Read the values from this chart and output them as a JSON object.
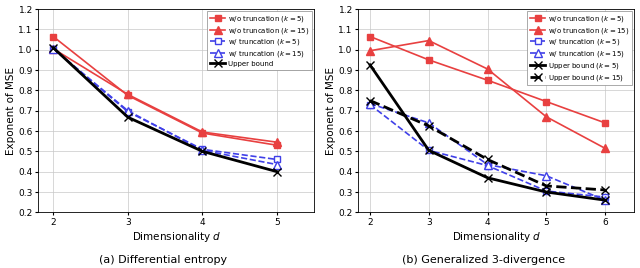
{
  "subplot_a": {
    "title": "(a) Differential entropy",
    "xlabel": "Dimensionality $d$",
    "ylabel": "Exponent of MSE",
    "xlim": [
      1.8,
      5.5
    ],
    "ylim": [
      0.2,
      1.2
    ],
    "xticks": [
      2,
      3,
      4,
      5
    ],
    "yticks": [
      0.2,
      0.3,
      0.4,
      0.5,
      0.6,
      0.7,
      0.8,
      0.9,
      1.0,
      1.1,
      1.2
    ],
    "series": [
      {
        "label": "w/o truncation ($k = 5$)",
        "x": [
          2,
          3,
          4,
          5
        ],
        "y": [
          1.065,
          0.775,
          0.59,
          0.53
        ],
        "color": "#e84040",
        "linestyle": "-",
        "marker": "s",
        "markerfacecolor": "#e84040",
        "markersize": 5,
        "linewidth": 1.2
      },
      {
        "label": "w/o truncation ($k = 15$)",
        "x": [
          2,
          3,
          4,
          5
        ],
        "y": [
          1.005,
          0.78,
          0.595,
          0.545
        ],
        "color": "#e84040",
        "linestyle": "-",
        "marker": "^",
        "markerfacecolor": "#e84040",
        "markersize": 6,
        "linewidth": 1.2
      },
      {
        "label": "w/ truncation ($k = 5$)",
        "x": [
          2,
          3,
          4,
          5
        ],
        "y": [
          1.005,
          0.695,
          0.51,
          0.46
        ],
        "color": "#4040e8",
        "linestyle": "--",
        "marker": "s",
        "markerfacecolor": "white",
        "markersize": 5,
        "linewidth": 1.2
      },
      {
        "label": "w/ truncation ($k = 15$)",
        "x": [
          2,
          3,
          4,
          5
        ],
        "y": [
          1.005,
          0.7,
          0.505,
          0.435
        ],
        "color": "#4040e8",
        "linestyle": "--",
        "marker": "^",
        "markerfacecolor": "white",
        "markersize": 6,
        "linewidth": 1.2
      },
      {
        "label": "Upper bound",
        "x": [
          2,
          3,
          4,
          5
        ],
        "y": [
          1.01,
          0.668,
          0.5,
          0.4
        ],
        "color": "#000000",
        "linestyle": "-",
        "marker": "x",
        "markerfacecolor": "#000000",
        "markersize": 6,
        "linewidth": 2.0
      }
    ]
  },
  "subplot_b": {
    "title": "(b) Generalized 3-divergence",
    "xlabel": "Dimensionality $d$",
    "ylabel": "Exponent of MSE",
    "xlim": [
      1.8,
      6.5
    ],
    "ylim": [
      0.2,
      1.2
    ],
    "xticks": [
      2,
      3,
      4,
      5,
      6
    ],
    "yticks": [
      0.2,
      0.3,
      0.4,
      0.5,
      0.6,
      0.7,
      0.8,
      0.9,
      1.0,
      1.1,
      1.2
    ],
    "series": [
      {
        "label": "w/o truncation ($k = 5$)",
        "x": [
          2,
          3,
          4,
          5,
          6
        ],
        "y": [
          1.065,
          0.95,
          0.85,
          0.745,
          0.64
        ],
        "color": "#e84040",
        "linestyle": "-",
        "marker": "s",
        "markerfacecolor": "#e84040",
        "markersize": 5,
        "linewidth": 1.2
      },
      {
        "label": "w/o truncation ($k = 15$)",
        "x": [
          2,
          3,
          4,
          5,
          6
        ],
        "y": [
          0.995,
          1.045,
          0.905,
          0.67,
          0.515
        ],
        "color": "#e84040",
        "linestyle": "-",
        "marker": "^",
        "markerfacecolor": "#e84040",
        "markersize": 6,
        "linewidth": 1.2
      },
      {
        "label": "w/ truncation ($k = 5$)",
        "x": [
          2,
          3,
          4,
          5,
          6
        ],
        "y": [
          0.73,
          0.505,
          0.43,
          0.305,
          0.275
        ],
        "color": "#4040e8",
        "linestyle": "--",
        "marker": "s",
        "markerfacecolor": "white",
        "markersize": 5,
        "linewidth": 1.2
      },
      {
        "label": "w/ truncation ($k = 15$)",
        "x": [
          2,
          3,
          4,
          5,
          6
        ],
        "y": [
          0.735,
          0.64,
          0.435,
          0.38,
          0.26
        ],
        "color": "#4040e8",
        "linestyle": "--",
        "marker": "^",
        "markerfacecolor": "white",
        "markersize": 6,
        "linewidth": 1.2
      },
      {
        "label": "Upper bound ($k = 5$)",
        "x": [
          2,
          3,
          4,
          5,
          6
        ],
        "y": [
          0.925,
          0.505,
          0.37,
          0.3,
          0.26
        ],
        "color": "#000000",
        "linestyle": "-",
        "marker": "x",
        "markerfacecolor": "#000000",
        "markersize": 6,
        "linewidth": 2.0
      },
      {
        "label": "Upper bound ($k = 15$)",
        "x": [
          2,
          3,
          4,
          5,
          6
        ],
        "y": [
          0.75,
          0.625,
          0.46,
          0.33,
          0.31
        ],
        "color": "#000000",
        "linestyle": "--",
        "marker": "x",
        "markerfacecolor": "#000000",
        "markersize": 6,
        "linewidth": 2.0
      }
    ]
  },
  "figsize": [
    6.4,
    2.68
  ],
  "dpi": 100
}
